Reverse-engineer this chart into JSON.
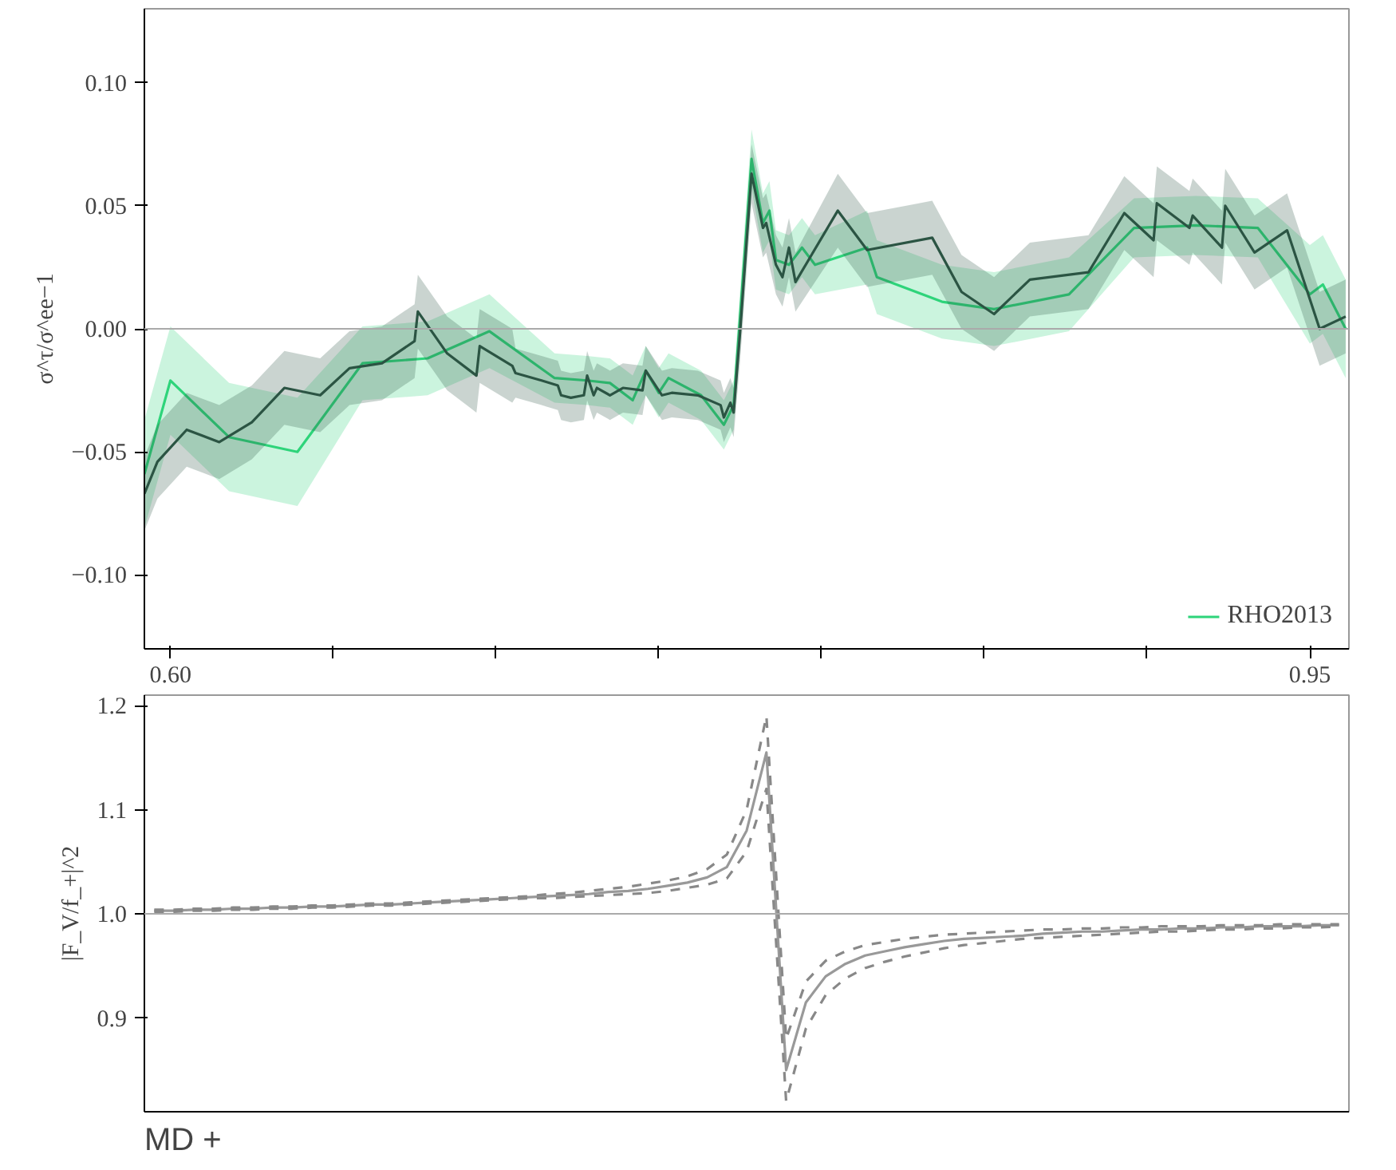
{
  "chart_data": [
    {
      "type": "line",
      "ylabel": "σ^τ/σ^ee−1",
      "xlim": [
        0.592,
        0.962
      ],
      "ylim": [
        -0.13,
        0.13
      ],
      "xticks": [
        {
          "value": 0.6,
          "label": "0.60"
        },
        {
          "value": 0.65,
          "label": null
        },
        {
          "value": 0.7,
          "label": null
        },
        {
          "value": 0.75,
          "label": null
        },
        {
          "value": 0.8,
          "label": null
        },
        {
          "value": 0.85,
          "label": null
        },
        {
          "value": 0.9,
          "label": null
        },
        {
          "value": 0.95,
          "label": "0.95"
        }
      ],
      "yticks": [
        {
          "value": -0.1,
          "label": "−0.10"
        },
        {
          "value": -0.05,
          "label": "−0.05"
        },
        {
          "value": 0,
          "label": "0.00"
        },
        {
          "value": 0.05,
          "label": "0.05"
        },
        {
          "value": 0.1,
          "label": "0.10"
        }
      ],
      "grid": false,
      "legend": "bottom right",
      "marker": "none",
      "line_style": "solid",
      "ref_lines": [
        {
          "axis": "y",
          "value": 0,
          "color": "#aaaaaa"
        }
      ],
      "series": [
        {
          "name": "RHO2013",
          "color": "#2ed47a",
          "x": [
            0.592,
            0.6,
            0.618,
            0.639,
            0.659,
            0.679,
            0.698,
            0.718,
            0.728,
            0.735,
            0.742,
            0.746,
            0.75,
            0.753,
            0.763,
            0.77,
            0.773,
            0.7785,
            0.782,
            0.784,
            0.786,
            0.79,
            0.794,
            0.798,
            0.814,
            0.817,
            0.837,
            0.853,
            0.876,
            0.896,
            0.915,
            0.934,
            0.95,
            0.954,
            0.961
          ],
          "values": [
            -0.059,
            -0.021,
            -0.044,
            -0.05,
            -0.014,
            -0.012,
            -0.001,
            -0.02,
            -0.021,
            -0.022,
            -0.029,
            -0.017,
            -0.026,
            -0.02,
            -0.027,
            -0.039,
            -0.031,
            0.069,
            0.043,
            0.048,
            0.028,
            0.026,
            0.033,
            0.026,
            0.033,
            0.021,
            0.011,
            0.008,
            0.014,
            0.041,
            0.042,
            0.041,
            0.014,
            0.018,
            0.0
          ],
          "lower": [
            -0.081,
            -0.043,
            -0.066,
            -0.072,
            -0.029,
            -0.027,
            -0.016,
            -0.03,
            -0.031,
            -0.032,
            -0.039,
            -0.027,
            -0.036,
            -0.03,
            -0.037,
            -0.049,
            -0.041,
            0.057,
            0.031,
            0.036,
            0.016,
            0.014,
            0.021,
            0.014,
            0.018,
            0.006,
            -0.004,
            -0.007,
            -0.001,
            0.029,
            0.03,
            0.029,
            -0.006,
            -0.002,
            -0.02
          ],
          "upper": [
            -0.037,
            0.001,
            -0.022,
            -0.028,
            0.001,
            0.003,
            0.014,
            -0.01,
            -0.011,
            -0.012,
            -0.019,
            -0.007,
            -0.016,
            -0.01,
            -0.017,
            -0.029,
            -0.021,
            0.081,
            0.055,
            0.06,
            0.04,
            0.038,
            0.045,
            0.038,
            0.048,
            0.036,
            0.026,
            0.023,
            0.029,
            0.053,
            0.054,
            0.053,
            0.034,
            0.038,
            0.02
          ]
        },
        {
          "color": "#2b5443",
          "x": [
            0.592,
            0.596,
            0.605,
            0.615,
            0.625,
            0.635,
            0.646,
            0.655,
            0.665,
            0.675,
            0.676,
            0.685,
            0.694,
            0.695,
            0.705,
            0.706,
            0.714,
            0.719,
            0.72,
            0.723,
            0.727,
            0.728,
            0.73,
            0.731,
            0.735,
            0.739,
            0.745,
            0.746,
            0.751,
            0.754,
            0.762,
            0.769,
            0.77,
            0.772,
            0.773,
            0.775,
            0.7785,
            0.782,
            0.783,
            0.786,
            0.788,
            0.79,
            0.792,
            0.805,
            0.814,
            0.834,
            0.843,
            0.853,
            0.864,
            0.882,
            0.893,
            0.902,
            0.903,
            0.913,
            0.914,
            0.923,
            0.924,
            0.933,
            0.943,
            0.953,
            0.961
          ],
          "values": [
            -0.067,
            -0.054,
            -0.041,
            -0.046,
            -0.038,
            -0.024,
            -0.027,
            -0.016,
            -0.014,
            -0.005,
            0.007,
            -0.01,
            -0.019,
            -0.007,
            -0.015,
            -0.018,
            -0.021,
            -0.023,
            -0.027,
            -0.028,
            -0.027,
            -0.019,
            -0.027,
            -0.024,
            -0.027,
            -0.024,
            -0.025,
            -0.017,
            -0.027,
            -0.026,
            -0.027,
            -0.031,
            -0.036,
            -0.03,
            -0.034,
            -0.001,
            0.063,
            0.041,
            0.043,
            0.026,
            0.021,
            0.033,
            0.019,
            0.048,
            0.032,
            0.037,
            0.015,
            0.006,
            0.02,
            0.023,
            0.047,
            0.036,
            0.051,
            0.041,
            0.046,
            0.033,
            0.05,
            0.031,
            0.04,
            0.0,
            0.005
          ],
          "lower": [
            -0.082,
            -0.069,
            -0.056,
            -0.061,
            -0.053,
            -0.039,
            -0.042,
            -0.031,
            -0.029,
            -0.02,
            -0.008,
            -0.025,
            -0.034,
            -0.022,
            -0.03,
            -0.028,
            -0.031,
            -0.033,
            -0.037,
            -0.038,
            -0.037,
            -0.029,
            -0.037,
            -0.034,
            -0.037,
            -0.034,
            -0.035,
            -0.027,
            -0.037,
            -0.036,
            -0.037,
            -0.041,
            -0.046,
            -0.04,
            -0.044,
            -0.013,
            0.051,
            0.029,
            0.031,
            0.014,
            0.009,
            0.021,
            0.007,
            0.033,
            0.017,
            0.022,
            0.0,
            -0.009,
            0.005,
            0.008,
            0.032,
            0.021,
            0.036,
            0.026,
            0.031,
            0.018,
            0.035,
            0.016,
            0.025,
            -0.015,
            -0.01
          ],
          "upper": [
            -0.052,
            -0.039,
            -0.026,
            -0.031,
            -0.023,
            -0.009,
            -0.012,
            -0.001,
            0.001,
            0.01,
            0.022,
            0.005,
            -0.004,
            0.008,
            0.0,
            -0.008,
            -0.011,
            -0.013,
            -0.017,
            -0.018,
            -0.017,
            -0.009,
            -0.017,
            -0.014,
            -0.017,
            -0.014,
            -0.015,
            -0.007,
            -0.017,
            -0.016,
            -0.017,
            -0.021,
            -0.026,
            -0.02,
            -0.024,
            0.011,
            0.075,
            0.053,
            0.055,
            0.038,
            0.033,
            0.045,
            0.031,
            0.063,
            0.047,
            0.052,
            0.03,
            0.021,
            0.035,
            0.038,
            0.062,
            0.051,
            0.066,
            0.056,
            0.061,
            0.048,
            0.065,
            0.046,
            0.055,
            0.015,
            0.02
          ]
        }
      ]
    },
    {
      "type": "line",
      "ylabel": "|F_V/f_+|^2",
      "ylim": [
        0.81,
        1.21
      ],
      "yticks": [
        {
          "value": 0.9,
          "label": "0.9"
        },
        {
          "value": 1.0,
          "label": "1.0"
        },
        {
          "value": 1.1,
          "label": "1.1"
        },
        {
          "value": 1.2,
          "label": "1.2"
        }
      ],
      "tick_labels": "y",
      "grid": false,
      "legend": false,
      "marker": "none",
      "annotations": [
        "MD +"
      ],
      "ref_lines": [
        {
          "axis": "y",
          "value": 1.0,
          "color": "#aaaaaa"
        }
      ],
      "categories": [
        null,
        null,
        null,
        null,
        null,
        null,
        null,
        null,
        null,
        null,
        null,
        null,
        null,
        null,
        null,
        null,
        null,
        null,
        null,
        null,
        null,
        null,
        null,
        null,
        null,
        null,
        null,
        null,
        null,
        null,
        null,
        null,
        null,
        null,
        null,
        null,
        null,
        null,
        null,
        null,
        null,
        null,
        null,
        null,
        null,
        null,
        null,
        null,
        null,
        null,
        null,
        null,
        null,
        null,
        null,
        null,
        null,
        null,
        null,
        null,
        null
      ],
      "series": [
        {
          "color": "#999999",
          "line_style": "solid",
          "values": [
            1.003,
            1.003,
            1.004,
            1.004,
            1.005,
            1.005,
            1.006,
            1.006,
            1.007,
            1.007,
            1.008,
            1.009,
            1.009,
            1.01,
            1.011,
            1.012,
            1.013,
            1.014,
            1.015,
            1.016,
            1.017,
            1.018,
            1.019,
            1.021,
            1.022,
            1.024,
            1.027,
            1.03,
            1.035,
            1.045,
            1.08,
            1.155,
            0.85,
            0.915,
            0.94,
            0.952,
            0.96,
            0.964,
            0.968,
            0.971,
            0.974,
            0.976,
            0.977,
            0.978,
            0.979,
            0.981,
            0.982,
            0.983,
            0.983,
            0.984,
            0.985,
            0.985,
            0.986,
            0.986,
            0.987,
            0.987,
            0.988,
            0.988,
            0.988,
            0.989,
            0.989
          ]
        },
        {
          "color": "#888888",
          "line_style": "dashed",
          "values": [
            1.004,
            1.004,
            1.005,
            1.005,
            1.006,
            1.006,
            1.007,
            1.007,
            1.008,
            1.008,
            1.009,
            1.01,
            1.01,
            1.011,
            1.012,
            1.013,
            1.014,
            1.015,
            1.016,
            1.017,
            1.019,
            1.02,
            1.022,
            1.024,
            1.026,
            1.029,
            1.032,
            1.036,
            1.043,
            1.057,
            1.1,
            1.19,
            0.88,
            0.935,
            0.955,
            0.964,
            0.97,
            0.973,
            0.976,
            0.978,
            0.98,
            0.981,
            0.982,
            0.983,
            0.984,
            0.985,
            0.985,
            0.986,
            0.986,
            0.987,
            0.987,
            0.988,
            0.988,
            0.988,
            0.989,
            0.989,
            0.989,
            0.99,
            0.99,
            0.99,
            0.99
          ]
        },
        {
          "color": "#888888",
          "line_style": "dashed",
          "values": [
            1.002,
            1.002,
            1.003,
            1.003,
            1.004,
            1.004,
            1.005,
            1.005,
            1.006,
            1.006,
            1.007,
            1.008,
            1.008,
            1.009,
            1.01,
            1.011,
            1.012,
            1.013,
            1.014,
            1.015,
            1.015,
            1.016,
            1.017,
            1.018,
            1.019,
            1.02,
            1.022,
            1.025,
            1.028,
            1.034,
            1.06,
            1.12,
            0.82,
            0.89,
            0.922,
            0.938,
            0.948,
            0.954,
            0.959,
            0.963,
            0.967,
            0.97,
            0.972,
            0.974,
            0.976,
            0.977,
            0.978,
            0.979,
            0.98,
            0.981,
            0.982,
            0.983,
            0.983,
            0.984,
            0.985,
            0.985,
            0.986,
            0.986,
            0.987,
            0.987,
            0.988
          ]
        }
      ]
    }
  ]
}
